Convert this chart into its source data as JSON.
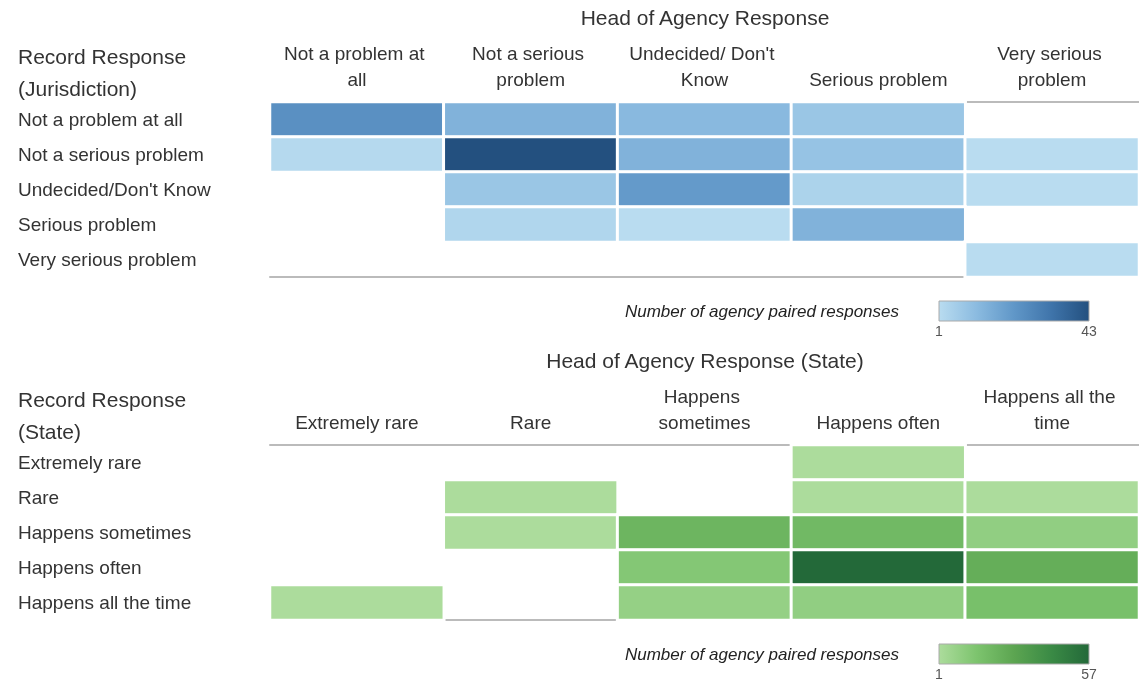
{
  "chart_data": [
    {
      "type": "heatmap",
      "title": "Head of Agency Response",
      "ylabel": "Record Response (Jurisdiction)",
      "clabel": "Number of agency paired responses",
      "categories": [
        "Not a problem at all",
        "Not a serious problem",
        "Undecided/ Don't Know",
        "Serious problem",
        "Very serious problem"
      ],
      "y_categories": [
        "Not a problem at all",
        "Not a serious problem",
        "Undecided/Don't Know",
        "Serious problem",
        "Very serious problem"
      ],
      "cells": [
        [
          24,
          14,
          12,
          8,
          null
        ],
        [
          2,
          43,
          14,
          9,
          1
        ],
        [
          null,
          8,
          21,
          4,
          1
        ],
        [
          null,
          3,
          1,
          14,
          null
        ],
        [
          null,
          null,
          null,
          null,
          1
        ]
      ],
      "clim": [
        1,
        43
      ],
      "cticks": [
        1,
        43
      ],
      "colors": [
        "#b9dcf0",
        "#8bbbe0",
        "#6097c8",
        "#3f74aa",
        "#23507f"
      ]
    },
    {
      "type": "heatmap",
      "title": "Head of Agency Response (State)",
      "ylabel": "Record Response (State)",
      "clabel": "Number of agency paired responses",
      "categories": [
        "Extremely rare",
        "Rare",
        "Happens sometimes",
        "Happens often",
        "Happens all the time"
      ],
      "y_categories": [
        "Extremely rare",
        "Rare",
        "Happens sometimes",
        "Happens often",
        "Happens all the time"
      ],
      "cells": [
        [
          null,
          null,
          null,
          1,
          null
        ],
        [
          null,
          1,
          null,
          1,
          1
        ],
        [
          null,
          1,
          22,
          20,
          9
        ],
        [
          null,
          null,
          13,
          57,
          25
        ],
        [
          1,
          null,
          8,
          9,
          17
        ]
      ],
      "clim": [
        1,
        57
      ],
      "cticks": [
        1,
        57
      ],
      "colors": [
        "#acdc9c",
        "#7dc46e",
        "#5ca551",
        "#3a8a45",
        "#236939"
      ]
    }
  ]
}
